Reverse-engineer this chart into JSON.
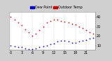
{
  "background_color": "#d0d0d0",
  "plot_bg_color": "#ffffff",
  "temp_color": "#cc0000",
  "dew_color": "#0000cc",
  "legend_temp_label": "Outdoor Temp",
  "legend_dew_label": "Dew Point",
  "legend_temp_bar_color": "#cc0000",
  "legend_dew_bar_color": "#0000cc",
  "hours": [
    0,
    1,
    2,
    3,
    4,
    5,
    6,
    7,
    8,
    9,
    10,
    11,
    12,
    13,
    14,
    15,
    16,
    17,
    18,
    19,
    20,
    21,
    22,
    23
  ],
  "temp": [
    40,
    37,
    34,
    31,
    27,
    24,
    20,
    22,
    26,
    30,
    34,
    36,
    37,
    37,
    36,
    35,
    34,
    33,
    32,
    30,
    28,
    26,
    24,
    22
  ],
  "dew": [
    10,
    9,
    8,
    8,
    7,
    6,
    6,
    7,
    8,
    9,
    10,
    11,
    12,
    14,
    15,
    15,
    14,
    13,
    13,
    14,
    15,
    16,
    17,
    18
  ],
  "ylim_min": 5,
  "ylim_max": 45,
  "ytick_vals": [
    10,
    20,
    30,
    40
  ],
  "ytick_labels": [
    "10",
    "20",
    "30",
    "40"
  ],
  "grid_color": "#999999",
  "tick_fontsize": 3.5,
  "legend_fontsize": 3.5,
  "marker_size": 1.5,
  "x_tick_step": 3,
  "x_tick_labels": [
    "0",
    "",
    "",
    "3",
    "",
    "",
    "6",
    "",
    "",
    "9",
    "",
    "",
    "12",
    "",
    "",
    "15",
    "",
    "",
    "18",
    "",
    "",
    "21",
    "",
    "",
    ""
  ]
}
